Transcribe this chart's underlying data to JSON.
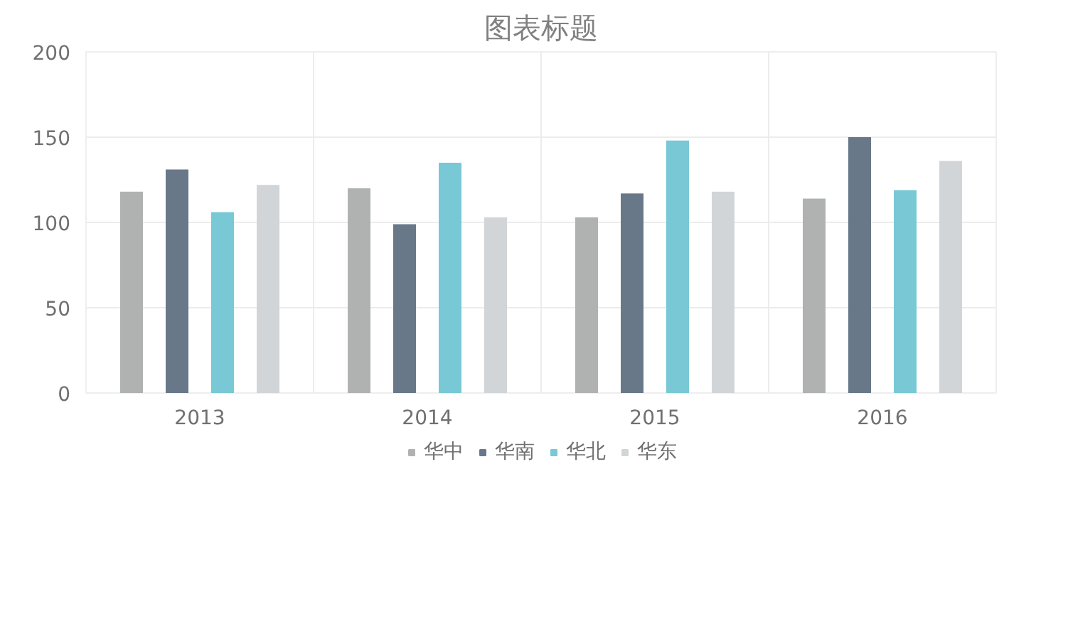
{
  "chart_data": {
    "type": "bar",
    "title": "图表标题",
    "categories": [
      "2013",
      "2014",
      "2015",
      "2016"
    ],
    "series": [
      {
        "name": "华中",
        "color": "#b0b2b1",
        "values": [
          118,
          120,
          103,
          114
        ]
      },
      {
        "name": "华南",
        "color": "#687889",
        "values": [
          131,
          99,
          117,
          150
        ]
      },
      {
        "name": "华北",
        "color": "#78c8d5",
        "values": [
          106,
          135,
          148,
          119
        ]
      },
      {
        "name": "华东",
        "color": "#d2d5d7",
        "values": [
          122,
          103,
          118,
          136
        ]
      }
    ],
    "ylim": [
      0,
      200
    ],
    "yticks": [
      0,
      50,
      100,
      150,
      200
    ],
    "grid": true,
    "legend": "bottom"
  }
}
